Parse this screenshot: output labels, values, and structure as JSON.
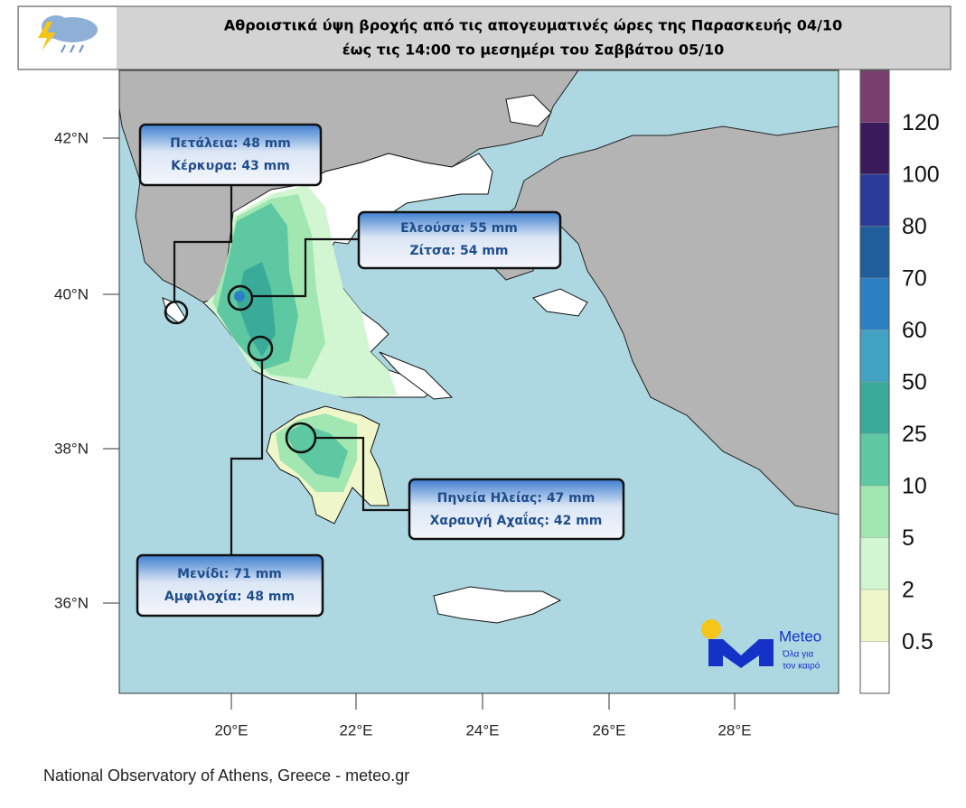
{
  "header": {
    "title_lines": [
      "Αθροιστικά ύψη βροχής από τις απογευματινές ώρες της Παρασκευής 04/10",
      "έως τις 14:00 το μεσημέρι του Σαββάτου 05/10"
    ]
  },
  "map": {
    "lat_labels": [
      "42°N",
      "40°N",
      "38°N",
      "36°N"
    ],
    "lon_labels": [
      "20°E",
      "22°E",
      "24°E",
      "26°E",
      "28°E"
    ],
    "callouts": [
      {
        "lines": [
          "Πετάλεια: 48 mm",
          "Κέρκυρα: 43 mm"
        ]
      },
      {
        "lines": [
          "Ελεούσα: 55 mm",
          "Ζίτσα: 54 mm"
        ]
      },
      {
        "lines": [
          "Πηνεία Ηλείας: 47 mm",
          "Χαραυγή Αχαΐας: 42 mm"
        ]
      },
      {
        "lines": [
          "Μενίδι: 71 mm",
          "Αμφιλοχία: 48 mm"
        ]
      }
    ]
  },
  "colorbar": {
    "colors": [
      "#7b3f6f",
      "#3b1a5c",
      "#2b3b98",
      "#1f5e9a",
      "#2a80c2",
      "#42a2c4",
      "#3aab98",
      "#5ec8a2",
      "#a2e6b2",
      "#d2f6d2",
      "#eff6c9",
      "#ffffff"
    ],
    "labels": [
      "120",
      "100",
      "80",
      "70",
      "60",
      "50",
      "25",
      "10",
      "5",
      "2",
      "0.5"
    ]
  },
  "logo": {
    "name": "Meteo",
    "tagline": [
      "Όλα για",
      "τον καιρό"
    ]
  },
  "footer": "National Observatory of Athens, Greece - meteo.gr"
}
